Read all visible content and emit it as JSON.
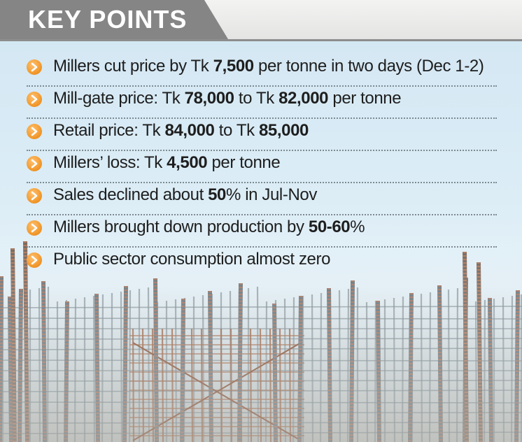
{
  "header": {
    "title": "KEY POINTS",
    "tab_color": "#858585"
  },
  "bullet_icon": "orange-arrow-circle-icon",
  "accent_color": "#f29a2e",
  "points": [
    {
      "pre": "Millers cut price by Tk ",
      "b1": "7,500",
      "mid": " per tonne in two days (Dec 1-2)",
      "b2": "",
      "post": ""
    },
    {
      "pre": "Mill-gate price: Tk ",
      "b1": "78,000",
      "mid": " to Tk ",
      "b2": "82,000",
      "post": " per tonne"
    },
    {
      "pre": "Retail price: Tk ",
      "b1": "84,000",
      "mid": " to Tk ",
      "b2": "85,000",
      "post": ""
    },
    {
      "pre": "Millers’ loss: Tk ",
      "b1": "4,500",
      "mid": " per tonne",
      "b2": "",
      "post": ""
    },
    {
      "pre": "Sales declined about ",
      "b1": "50",
      "mid": "% in Jul-Nov",
      "b2": "",
      "post": ""
    },
    {
      "pre": "Millers brought down production by ",
      "b1": "50-60",
      "mid": "%",
      "b2": "",
      "post": ""
    },
    {
      "pre": "Public sector consumption almost zero",
      "b1": "",
      "mid": "",
      "b2": "",
      "post": ""
    }
  ]
}
